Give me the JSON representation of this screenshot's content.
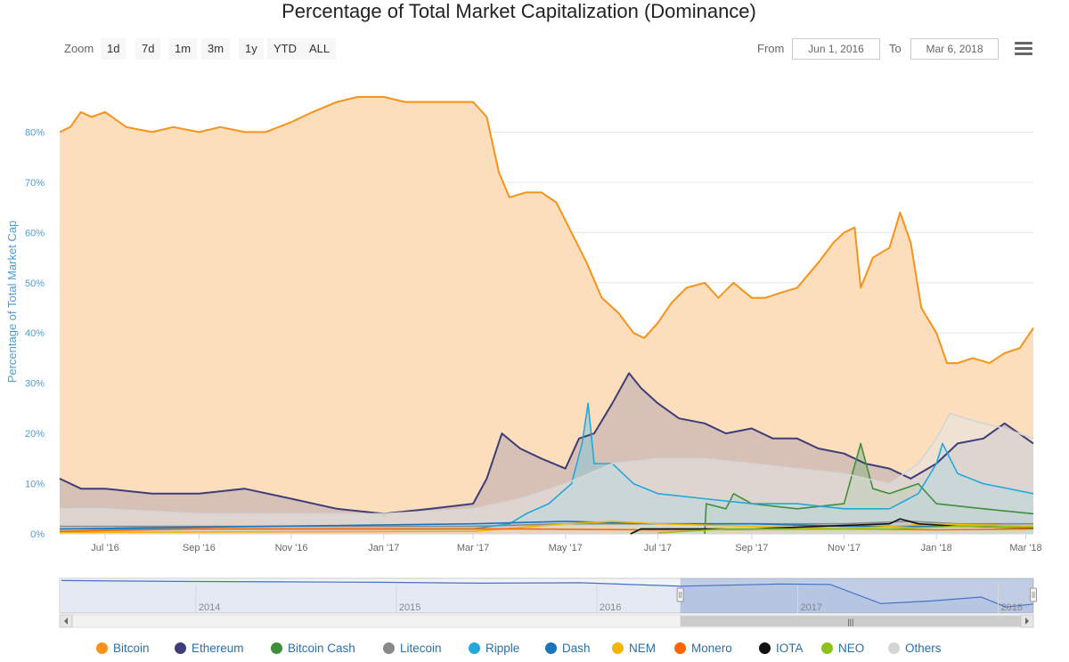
{
  "header": {
    "title": "Percentage of Total Market Capitalization (Dominance)"
  },
  "toolbar": {
    "zoom_label": "Zoom",
    "zoom_buttons": [
      "1d",
      "7d",
      "1m",
      "3m",
      "1y",
      "YTD",
      "ALL"
    ],
    "from_label": "From",
    "from_value": "Jun 1, 2016",
    "to_label": "To",
    "to_value": "Mar 6, 2018",
    "menu_icon": "hamburger-menu-icon"
  },
  "navigator": {
    "year_labels": [
      "2014",
      "2015",
      "2016",
      "2017",
      "2018"
    ],
    "handle_glyph": "|||"
  },
  "chart_data": {
    "type": "area",
    "title": "Percentage of Total Market Capitalization (Dominance)",
    "ylabel": "Percentage of Total Market Cap",
    "xlabel": "",
    "ylim": [
      0,
      90
    ],
    "x_range": [
      "2016-06-01",
      "2018-03-06"
    ],
    "y_ticks": [
      "0%",
      "10%",
      "20%",
      "30%",
      "40%",
      "50%",
      "60%",
      "70%",
      "80%"
    ],
    "x_ticks": [
      "Jul '16",
      "Sep '16",
      "Nov '16",
      "Jan '17",
      "Mar '17",
      "May '17",
      "Jul '17",
      "Sep '17",
      "Nov '17",
      "Jan '18",
      "Mar '18"
    ],
    "grid": true,
    "legend_position": "bottom",
    "series": [
      {
        "name": "Bitcoin",
        "color": "#f7931a",
        "fill": "#fcdcb8",
        "points": [
          [
            "2016-06-01",
            80
          ],
          [
            "2016-06-08",
            81
          ],
          [
            "2016-06-15",
            84
          ],
          [
            "2016-06-22",
            83
          ],
          [
            "2016-07-01",
            84
          ],
          [
            "2016-07-15",
            81
          ],
          [
            "2016-08-01",
            80
          ],
          [
            "2016-08-15",
            81
          ],
          [
            "2016-09-01",
            80
          ],
          [
            "2016-09-15",
            81
          ],
          [
            "2016-10-01",
            80
          ],
          [
            "2016-10-15",
            80
          ],
          [
            "2016-11-01",
            82
          ],
          [
            "2016-11-15",
            84
          ],
          [
            "2016-12-01",
            86
          ],
          [
            "2016-12-15",
            87
          ],
          [
            "2017-01-01",
            87
          ],
          [
            "2017-01-15",
            86
          ],
          [
            "2017-02-01",
            86
          ],
          [
            "2017-02-15",
            86
          ],
          [
            "2017-03-01",
            86
          ],
          [
            "2017-03-10",
            83
          ],
          [
            "2017-03-18",
            72
          ],
          [
            "2017-03-25",
            67
          ],
          [
            "2017-04-05",
            68
          ],
          [
            "2017-04-15",
            68
          ],
          [
            "2017-04-25",
            66
          ],
          [
            "2017-05-05",
            60
          ],
          [
            "2017-05-15",
            54
          ],
          [
            "2017-05-25",
            47
          ],
          [
            "2017-06-05",
            44
          ],
          [
            "2017-06-15",
            40
          ],
          [
            "2017-06-22",
            39
          ],
          [
            "2017-07-01",
            42
          ],
          [
            "2017-07-10",
            46
          ],
          [
            "2017-07-20",
            49
          ],
          [
            "2017-08-01",
            50
          ],
          [
            "2017-08-10",
            47
          ],
          [
            "2017-08-20",
            50
          ],
          [
            "2017-09-01",
            47
          ],
          [
            "2017-09-10",
            47
          ],
          [
            "2017-09-20",
            48
          ],
          [
            "2017-10-01",
            49
          ],
          [
            "2017-10-15",
            54
          ],
          [
            "2017-10-25",
            58
          ],
          [
            "2017-11-01",
            60
          ],
          [
            "2017-11-08",
            61
          ],
          [
            "2017-11-12",
            49
          ],
          [
            "2017-11-20",
            55
          ],
          [
            "2017-12-01",
            57
          ],
          [
            "2017-12-08",
            64
          ],
          [
            "2017-12-15",
            58
          ],
          [
            "2017-12-22",
            45
          ],
          [
            "2018-01-01",
            40
          ],
          [
            "2018-01-08",
            34
          ],
          [
            "2018-01-15",
            34
          ],
          [
            "2018-01-25",
            35
          ],
          [
            "2018-02-05",
            34
          ],
          [
            "2018-02-15",
            36
          ],
          [
            "2018-02-25",
            37
          ],
          [
            "2018-03-06",
            41
          ]
        ]
      },
      {
        "name": "Ethereum",
        "color": "#3e3d78",
        "fill": "#b8aab0",
        "points": [
          [
            "2016-06-01",
            11
          ],
          [
            "2016-06-15",
            9
          ],
          [
            "2016-07-01",
            9
          ],
          [
            "2016-08-01",
            8
          ],
          [
            "2016-09-01",
            8
          ],
          [
            "2016-10-01",
            9
          ],
          [
            "2016-11-01",
            7
          ],
          [
            "2016-12-01",
            5
          ],
          [
            "2017-01-01",
            4
          ],
          [
            "2017-02-01",
            5
          ],
          [
            "2017-03-01",
            6
          ],
          [
            "2017-03-10",
            11
          ],
          [
            "2017-03-20",
            20
          ],
          [
            "2017-04-01",
            17
          ],
          [
            "2017-04-15",
            15
          ],
          [
            "2017-05-01",
            13
          ],
          [
            "2017-05-10",
            19
          ],
          [
            "2017-05-20",
            20
          ],
          [
            "2017-06-01",
            26
          ],
          [
            "2017-06-12",
            32
          ],
          [
            "2017-06-20",
            29
          ],
          [
            "2017-07-01",
            26
          ],
          [
            "2017-07-15",
            23
          ],
          [
            "2017-08-01",
            22
          ],
          [
            "2017-08-15",
            20
          ],
          [
            "2017-09-01",
            21
          ],
          [
            "2017-09-15",
            19
          ],
          [
            "2017-10-01",
            19
          ],
          [
            "2017-10-15",
            17
          ],
          [
            "2017-11-01",
            16
          ],
          [
            "2017-11-15",
            14
          ],
          [
            "2017-12-01",
            13
          ],
          [
            "2017-12-15",
            11
          ],
          [
            "2018-01-01",
            14
          ],
          [
            "2018-01-15",
            18
          ],
          [
            "2018-02-01",
            19
          ],
          [
            "2018-02-15",
            22
          ],
          [
            "2018-03-06",
            18
          ]
        ]
      },
      {
        "name": "Bitcoin Cash",
        "color": "#3f8f3a",
        "fill": "#93b48a",
        "points": [
          [
            "2017-08-01",
            0
          ],
          [
            "2017-08-02",
            6
          ],
          [
            "2017-08-15",
            5
          ],
          [
            "2017-08-20",
            8
          ],
          [
            "2017-09-01",
            6
          ],
          [
            "2017-10-01",
            5
          ],
          [
            "2017-11-01",
            6
          ],
          [
            "2017-11-12",
            18
          ],
          [
            "2017-11-20",
            9
          ],
          [
            "2017-12-01",
            8
          ],
          [
            "2017-12-20",
            10
          ],
          [
            "2018-01-01",
            6
          ],
          [
            "2018-02-01",
            5
          ],
          [
            "2018-03-06",
            4
          ]
        ]
      },
      {
        "name": "Litecoin",
        "color": "#888888",
        "fill": "#c7c7c7",
        "points": [
          [
            "2016-06-01",
            1.5
          ],
          [
            "2017-03-01",
            1.5
          ],
          [
            "2017-05-01",
            2
          ],
          [
            "2017-07-01",
            2
          ],
          [
            "2017-09-01",
            2
          ],
          [
            "2017-11-01",
            2
          ],
          [
            "2017-12-15",
            2.5
          ],
          [
            "2018-01-15",
            2
          ],
          [
            "2018-03-06",
            2
          ]
        ]
      },
      {
        "name": "Ripple",
        "color": "#25a7da",
        "fill": "#89c6d6",
        "points": [
          [
            "2016-06-01",
            1
          ],
          [
            "2016-12-01",
            1
          ],
          [
            "2017-03-01",
            1
          ],
          [
            "2017-03-25",
            2
          ],
          [
            "2017-04-05",
            4
          ],
          [
            "2017-04-20",
            6
          ],
          [
            "2017-05-05",
            10
          ],
          [
            "2017-05-12",
            18
          ],
          [
            "2017-05-16",
            26
          ],
          [
            "2017-05-20",
            14
          ],
          [
            "2017-06-01",
            14
          ],
          [
            "2017-06-15",
            10
          ],
          [
            "2017-07-01",
            8
          ],
          [
            "2017-08-01",
            7
          ],
          [
            "2017-09-01",
            6
          ],
          [
            "2017-10-01",
            6
          ],
          [
            "2017-11-01",
            5
          ],
          [
            "2017-12-01",
            5
          ],
          [
            "2017-12-20",
            8
          ],
          [
            "2018-01-01",
            14
          ],
          [
            "2018-01-05",
            18
          ],
          [
            "2018-01-15",
            12
          ],
          [
            "2018-02-01",
            10
          ],
          [
            "2018-03-06",
            8
          ]
        ]
      },
      {
        "name": "Dash",
        "color": "#1c75bc",
        "fill": "#8ab0d0",
        "points": [
          [
            "2016-06-01",
            1
          ],
          [
            "2017-03-01",
            2
          ],
          [
            "2017-05-01",
            2.5
          ],
          [
            "2017-07-01",
            2
          ],
          [
            "2017-09-01",
            2
          ],
          [
            "2017-11-01",
            1.5
          ],
          [
            "2018-01-01",
            1.5
          ],
          [
            "2018-03-06",
            1.5
          ]
        ]
      },
      {
        "name": "NEM",
        "color": "#f2b600",
        "fill": "#f3d98a",
        "points": [
          [
            "2016-06-01",
            0.3
          ],
          [
            "2017-03-01",
            0.5
          ],
          [
            "2017-05-01",
            2
          ],
          [
            "2017-06-01",
            2.5
          ],
          [
            "2017-07-01",
            2
          ],
          [
            "2017-09-01",
            1.5
          ],
          [
            "2017-11-01",
            1
          ],
          [
            "2018-01-01",
            2
          ],
          [
            "2018-03-06",
            1.5
          ]
        ]
      },
      {
        "name": "Monero",
        "color": "#ff6600",
        "fill": "#f8b88a",
        "points": [
          [
            "2016-06-01",
            0.5
          ],
          [
            "2016-09-01",
            1
          ],
          [
            "2017-01-01",
            1
          ],
          [
            "2017-04-01",
            1
          ],
          [
            "2017-07-01",
            0.8
          ],
          [
            "2017-11-01",
            1
          ],
          [
            "2018-01-01",
            0.8
          ],
          [
            "2018-03-06",
            1
          ]
        ]
      },
      {
        "name": "IOTA",
        "color": "#111111",
        "fill": "#999999",
        "points": [
          [
            "2017-06-13",
            0
          ],
          [
            "2017-06-20",
            1
          ],
          [
            "2017-09-01",
            1
          ],
          [
            "2017-12-01",
            2
          ],
          [
            "2017-12-08",
            3
          ],
          [
            "2017-12-20",
            2
          ],
          [
            "2018-01-15",
            1.5
          ],
          [
            "2018-03-06",
            1.2
          ]
        ]
      },
      {
        "name": "NEO",
        "color": "#8ec11f",
        "fill": "#c7e09a",
        "points": [
          [
            "2017-07-01",
            0.2
          ],
          [
            "2017-08-15",
            1
          ],
          [
            "2017-10-01",
            1
          ],
          [
            "2017-12-01",
            1
          ],
          [
            "2018-01-15",
            1.5
          ],
          [
            "2018-03-06",
            1.3
          ]
        ]
      },
      {
        "name": "Others",
        "color": "#d4d4d4",
        "fill": "#e6e6e6",
        "points": [
          [
            "2016-06-01",
            5
          ],
          [
            "2016-07-01",
            5
          ],
          [
            "2016-09-01",
            4
          ],
          [
            "2016-11-01",
            4
          ],
          [
            "2017-01-01",
            4
          ],
          [
            "2017-03-01",
            5
          ],
          [
            "2017-04-01",
            7
          ],
          [
            "2017-05-01",
            10
          ],
          [
            "2017-06-01",
            14
          ],
          [
            "2017-07-01",
            15
          ],
          [
            "2017-08-01",
            15
          ],
          [
            "2017-09-01",
            14
          ],
          [
            "2017-10-01",
            13
          ],
          [
            "2017-11-01",
            12
          ],
          [
            "2017-12-01",
            10
          ],
          [
            "2017-12-20",
            14
          ],
          [
            "2018-01-01",
            19
          ],
          [
            "2018-01-10",
            24
          ],
          [
            "2018-01-20",
            23
          ],
          [
            "2018-02-01",
            22
          ],
          [
            "2018-02-15",
            21
          ],
          [
            "2018-03-06",
            19
          ]
        ]
      }
    ]
  },
  "navigator_data": {
    "series": "Bitcoin",
    "points": [
      [
        "2013-05-01",
        95
      ],
      [
        "2013-12-01",
        93
      ],
      [
        "2014-06-01",
        92
      ],
      [
        "2014-12-01",
        91
      ],
      [
        "2015-06-01",
        89
      ],
      [
        "2015-12-01",
        90
      ],
      [
        "2016-06-01",
        82
      ],
      [
        "2016-12-01",
        87
      ],
      [
        "2017-03-01",
        86
      ],
      [
        "2017-06-01",
        42
      ],
      [
        "2017-09-01",
        48
      ],
      [
        "2017-12-01",
        57
      ],
      [
        "2018-01-15",
        34
      ],
      [
        "2018-03-06",
        41
      ]
    ],
    "selected_range": [
      "2016-06-01",
      "2018-03-06"
    ]
  }
}
